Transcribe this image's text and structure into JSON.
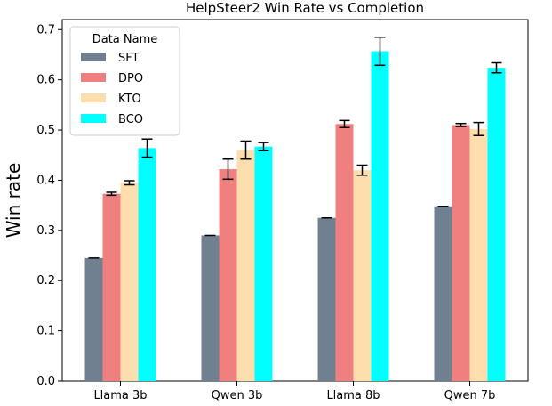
{
  "chart_data": {
    "type": "bar",
    "title": "HelpSteer2 Win Rate vs Completion",
    "xlabel": "",
    "ylabel": "Win rate",
    "ylim": [
      0,
      0.72
    ],
    "yticks": [
      "0.0",
      "0.1",
      "0.2",
      "0.3",
      "0.4",
      "0.5",
      "0.6",
      "0.7"
    ],
    "categories": [
      "Llama 3b",
      "Qwen 3b",
      "Llama 8b",
      "Qwen 7b"
    ],
    "legend": {
      "title": "Data Name",
      "placement": "top-left"
    },
    "series": [
      {
        "name": "SFT",
        "color": "#708090",
        "values": [
          0.245,
          0.29,
          0.325,
          0.348
        ],
        "errors": [
          0.0,
          0.0,
          0.0,
          0.0
        ]
      },
      {
        "name": "DPO",
        "color": "#f08080",
        "values": [
          0.373,
          0.422,
          0.512,
          0.51
        ],
        "errors": [
          0.003,
          0.02,
          0.007,
          0.003
        ]
      },
      {
        "name": "KTO",
        "color": "#ffdead",
        "values": [
          0.395,
          0.46,
          0.42,
          0.502
        ],
        "errors": [
          0.004,
          0.018,
          0.01,
          0.013
        ]
      },
      {
        "name": "BCO",
        "color": "#00ffff",
        "values": [
          0.464,
          0.467,
          0.657,
          0.624
        ],
        "errors": [
          0.018,
          0.008,
          0.028,
          0.01
        ]
      }
    ],
    "grid": false
  }
}
